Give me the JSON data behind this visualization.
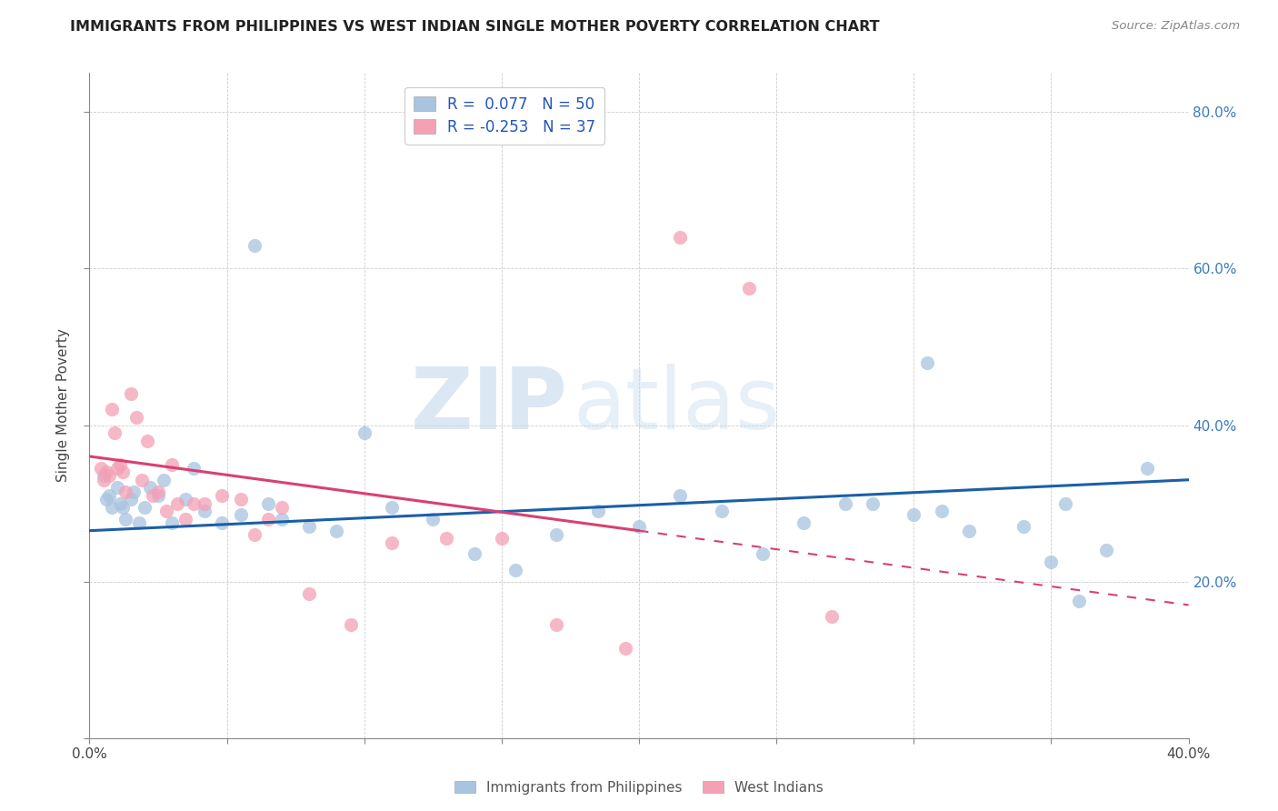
{
  "title": "IMMIGRANTS FROM PHILIPPINES VS WEST INDIAN SINGLE MOTHER POVERTY CORRELATION CHART",
  "source": "Source: ZipAtlas.com",
  "ylabel": "Single Mother Poverty",
  "xlim": [
    0.0,
    0.4
  ],
  "ylim": [
    0.0,
    0.85
  ],
  "x_ticks": [
    0.0,
    0.05,
    0.1,
    0.15,
    0.2,
    0.25,
    0.3,
    0.35,
    0.4
  ],
  "y_ticks": [
    0.0,
    0.2,
    0.4,
    0.6,
    0.8
  ],
  "philippines_R": 0.077,
  "philippines_N": 50,
  "westindian_R": -0.253,
  "westindian_N": 37,
  "philippines_color": "#a8c4e0",
  "westindian_color": "#f4a0b5",
  "philippines_line_color": "#1a5fa8",
  "westindian_line_color": "#d94070",
  "watermark_zip": "ZIP",
  "watermark_atlas": "atlas",
  "legend_label_philippines": "Immigrants from Philippines",
  "legend_label_westindians": "West Indians",
  "philippines_x": [
    0.005,
    0.006,
    0.007,
    0.008,
    0.01,
    0.011,
    0.012,
    0.013,
    0.015,
    0.016,
    0.018,
    0.02,
    0.022,
    0.025,
    0.027,
    0.03,
    0.035,
    0.038,
    0.042,
    0.048,
    0.055,
    0.06,
    0.065,
    0.07,
    0.08,
    0.09,
    0.1,
    0.11,
    0.125,
    0.14,
    0.155,
    0.17,
    0.185,
    0.2,
    0.215,
    0.23,
    0.245,
    0.26,
    0.275,
    0.285,
    0.3,
    0.305,
    0.31,
    0.32,
    0.34,
    0.35,
    0.355,
    0.36,
    0.37,
    0.385
  ],
  "philippines_y": [
    0.335,
    0.305,
    0.31,
    0.295,
    0.32,
    0.3,
    0.295,
    0.28,
    0.305,
    0.315,
    0.275,
    0.295,
    0.32,
    0.31,
    0.33,
    0.275,
    0.305,
    0.345,
    0.29,
    0.275,
    0.285,
    0.63,
    0.3,
    0.28,
    0.27,
    0.265,
    0.39,
    0.295,
    0.28,
    0.235,
    0.215,
    0.26,
    0.29,
    0.27,
    0.31,
    0.29,
    0.235,
    0.275,
    0.3,
    0.3,
    0.285,
    0.48,
    0.29,
    0.265,
    0.27,
    0.225,
    0.3,
    0.175,
    0.24,
    0.345
  ],
  "westindian_x": [
    0.004,
    0.005,
    0.006,
    0.007,
    0.008,
    0.009,
    0.01,
    0.011,
    0.012,
    0.013,
    0.015,
    0.017,
    0.019,
    0.021,
    0.023,
    0.025,
    0.028,
    0.03,
    0.032,
    0.035,
    0.038,
    0.042,
    0.048,
    0.055,
    0.06,
    0.065,
    0.07,
    0.08,
    0.095,
    0.11,
    0.13,
    0.15,
    0.17,
    0.195,
    0.215,
    0.24,
    0.27
  ],
  "westindian_y": [
    0.345,
    0.33,
    0.34,
    0.335,
    0.42,
    0.39,
    0.345,
    0.35,
    0.34,
    0.315,
    0.44,
    0.41,
    0.33,
    0.38,
    0.31,
    0.315,
    0.29,
    0.35,
    0.3,
    0.28,
    0.3,
    0.3,
    0.31,
    0.305,
    0.26,
    0.28,
    0.295,
    0.185,
    0.145,
    0.25,
    0.255,
    0.255,
    0.145,
    0.115,
    0.64,
    0.575,
    0.155
  ],
  "phil_trend_x0": 0.0,
  "phil_trend_y0": 0.265,
  "phil_trend_x1": 0.4,
  "phil_trend_y1": 0.33,
  "west_trend_x0": 0.0,
  "west_trend_y0": 0.36,
  "west_trend_x1": 0.2,
  "west_trend_y1": 0.265
}
